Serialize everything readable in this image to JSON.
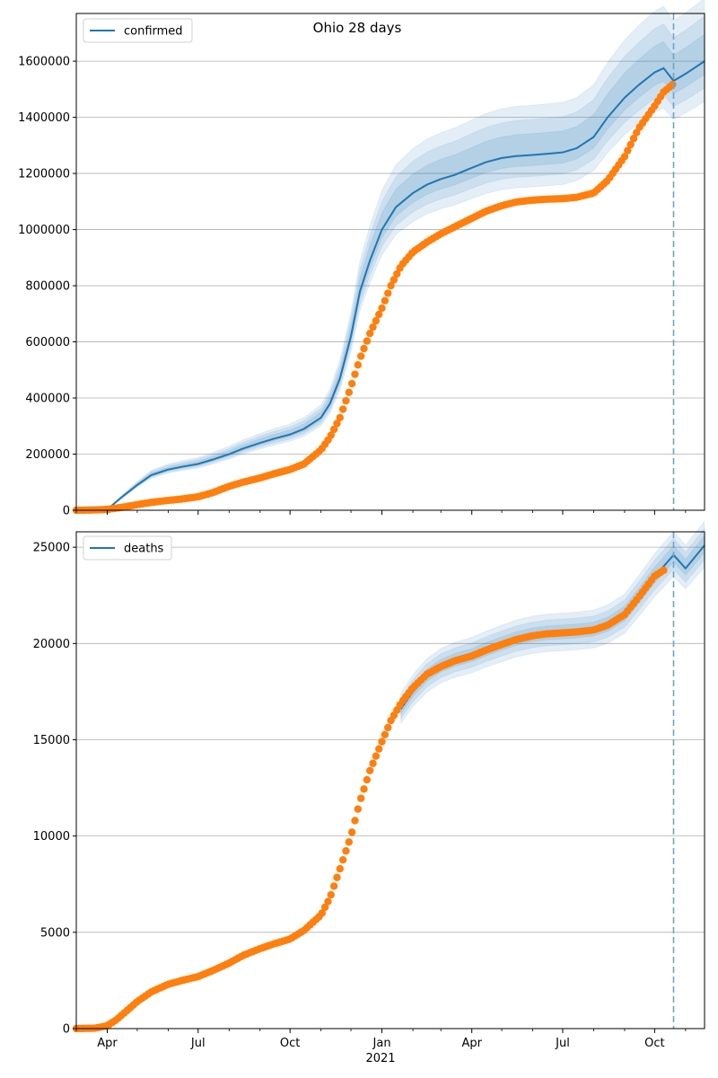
{
  "figure": {
    "title": "Ohio 28 days",
    "year_label": "2021"
  },
  "chart_data": [
    {
      "type": "line",
      "panel": "top",
      "legend": {
        "label": "confirmed",
        "placement": "top-left"
      },
      "x_range": [
        "2020-03-01",
        "2021-11-20"
      ],
      "ylim": [
        0,
        1770000
      ],
      "yticks": [
        0,
        200000,
        400000,
        600000,
        800000,
        1000000,
        1200000,
        1400000,
        1600000
      ],
      "ytick_labels": [
        "0",
        "200000",
        "400000",
        "600000",
        "800000",
        "1000000",
        "1200000",
        "1400000",
        "1600000"
      ],
      "grid": "y",
      "forecast_start": "2021-10-20",
      "series_colors": {
        "model": "#1f77b4",
        "observed": "#ff7f0e"
      },
      "model": {
        "x": [
          "2020-03-10",
          "2020-04-01",
          "2020-04-15",
          "2020-05-01",
          "2020-05-15",
          "2020-06-01",
          "2020-06-15",
          "2020-07-01",
          "2020-07-15",
          "2020-08-01",
          "2020-08-15",
          "2020-09-01",
          "2020-09-15",
          "2020-10-01",
          "2020-10-15",
          "2020-11-01",
          "2020-11-10",
          "2020-11-20",
          "2020-12-01",
          "2020-12-10",
          "2020-12-20",
          "2021-01-01",
          "2021-01-15",
          "2021-02-01",
          "2021-02-15",
          "2021-03-01",
          "2021-03-15",
          "2021-04-01",
          "2021-04-15",
          "2021-05-01",
          "2021-05-15",
          "2021-06-01",
          "2021-06-15",
          "2021-07-01",
          "2021-07-15",
          "2021-08-01",
          "2021-08-15",
          "2021-09-01",
          "2021-09-15",
          "2021-10-01",
          "2021-10-10",
          "2021-10-20",
          "2021-11-01",
          "2021-11-20"
        ],
        "y": [
          2000,
          3000,
          45000,
          90000,
          125000,
          145000,
          155000,
          165000,
          180000,
          200000,
          220000,
          240000,
          255000,
          270000,
          290000,
          330000,
          380000,
          470000,
          620000,
          780000,
          890000,
          1000000,
          1080000,
          1130000,
          1160000,
          1180000,
          1195000,
          1220000,
          1240000,
          1255000,
          1262000,
          1266000,
          1270000,
          1275000,
          1290000,
          1330000,
          1400000,
          1470000,
          1515000,
          1560000,
          1575000,
          1530000,
          1555000,
          1600000
        ],
        "band_inner": [
          0.03,
          0.06
        ],
        "band_mid": [
          0.06,
          0.1
        ],
        "band_outer": [
          0.09,
          0.14
        ]
      },
      "observed": {
        "x": [
          "2020-03-01",
          "2020-03-20",
          "2020-04-01",
          "2020-04-15",
          "2020-05-01",
          "2020-05-15",
          "2020-06-01",
          "2020-06-15",
          "2020-07-01",
          "2020-07-15",
          "2020-08-01",
          "2020-08-15",
          "2020-09-01",
          "2020-09-15",
          "2020-10-01",
          "2020-10-15",
          "2020-11-01",
          "2020-11-10",
          "2020-11-20",
          "2020-12-01",
          "2020-12-10",
          "2020-12-20",
          "2021-01-01",
          "2021-01-10",
          "2021-01-20",
          "2021-02-01",
          "2021-02-15",
          "2021-03-01",
          "2021-03-15",
          "2021-04-01",
          "2021-04-15",
          "2021-05-01",
          "2021-05-15",
          "2021-06-01",
          "2021-06-15",
          "2021-07-01",
          "2021-07-15",
          "2021-08-01",
          "2021-08-15",
          "2021-09-01",
          "2021-09-15",
          "2021-10-01",
          "2021-10-10",
          "2021-10-20"
        ],
        "y": [
          0,
          1000,
          3000,
          10000,
          20000,
          28000,
          35000,
          40000,
          48000,
          62000,
          85000,
          100000,
          115000,
          130000,
          145000,
          165000,
          215000,
          260000,
          330000,
          440000,
          540000,
          630000,
          720000,
          800000,
          870000,
          920000,
          955000,
          985000,
          1010000,
          1040000,
          1065000,
          1085000,
          1098000,
          1105000,
          1108000,
          1110000,
          1115000,
          1130000,
          1175000,
          1260000,
          1360000,
          1440000,
          1490000,
          1520000
        ]
      }
    },
    {
      "type": "line",
      "panel": "bottom",
      "legend": {
        "label": "deaths",
        "placement": "top-left"
      },
      "x_range": [
        "2020-03-01",
        "2021-11-20"
      ],
      "ylim": [
        0,
        25800
      ],
      "yticks": [
        0,
        5000,
        10000,
        15000,
        20000,
        25000
      ],
      "ytick_labels": [
        "0",
        "5000",
        "10000",
        "15000",
        "20000",
        "25000"
      ],
      "xticks": [
        "2020-04-01",
        "2020-07-01",
        "2020-10-01",
        "2021-01-01",
        "2021-04-01",
        "2021-07-01",
        "2021-10-01"
      ],
      "xtick_labels": [
        "Apr",
        "Jul",
        "Oct",
        "Jan",
        "Apr",
        "Jul",
        "Oct"
      ],
      "x_minor_ticks": [
        "2020-03-01",
        "2020-05-01",
        "2020-06-01",
        "2020-08-01",
        "2020-09-01",
        "2020-11-01",
        "2020-12-01",
        "2021-02-01",
        "2021-03-01",
        "2021-05-01",
        "2021-06-01",
        "2021-08-01",
        "2021-09-01",
        "2021-11-01"
      ],
      "grid": "y",
      "forecast_start": "2021-10-20",
      "series_colors": {
        "model": "#1f77b4",
        "observed": "#ff7f0e"
      },
      "model": {
        "x": [
          "2021-01-20",
          "2021-02-01",
          "2021-02-15",
          "2021-03-01",
          "2021-03-15",
          "2021-04-01",
          "2021-04-15",
          "2021-05-01",
          "2021-05-15",
          "2021-06-01",
          "2021-06-15",
          "2021-07-01",
          "2021-07-15",
          "2021-08-01",
          "2021-08-15",
          "2021-09-01",
          "2021-09-15",
          "2021-10-01",
          "2021-10-10",
          "2021-10-20",
          "2021-11-01",
          "2021-11-20"
        ],
        "y": [
          16600,
          17500,
          18300,
          18800,
          19100,
          19350,
          19650,
          19950,
          20200,
          20400,
          20500,
          20550,
          20600,
          20700,
          20950,
          21500,
          22400,
          23500,
          24000,
          24600,
          23900,
          25100
        ],
        "band_inner": [
          0.015,
          0.02
        ],
        "band_mid": [
          0.03,
          0.035
        ],
        "band_outer": [
          0.045,
          0.05
        ]
      },
      "observed": {
        "x": [
          "2020-03-01",
          "2020-03-20",
          "2020-04-01",
          "2020-04-10",
          "2020-04-20",
          "2020-05-01",
          "2020-05-15",
          "2020-06-01",
          "2020-06-15",
          "2020-07-01",
          "2020-07-15",
          "2020-08-01",
          "2020-08-15",
          "2020-09-01",
          "2020-09-15",
          "2020-10-01",
          "2020-10-15",
          "2020-11-01",
          "2020-11-10",
          "2020-11-20",
          "2020-12-01",
          "2020-12-10",
          "2020-12-20",
          "2021-01-01",
          "2021-01-10",
          "2021-01-20",
          "2021-02-01",
          "2021-02-15",
          "2021-03-01",
          "2021-03-15",
          "2021-04-01",
          "2021-04-15",
          "2021-05-01",
          "2021-05-15",
          "2021-06-01",
          "2021-06-15",
          "2021-07-01",
          "2021-07-15",
          "2021-08-01",
          "2021-08-15",
          "2021-09-01",
          "2021-09-15",
          "2021-10-01",
          "2021-10-10"
        ],
        "y": [
          0,
          20,
          150,
          450,
          900,
          1400,
          1900,
          2300,
          2500,
          2700,
          3000,
          3400,
          3800,
          4150,
          4400,
          4650,
          5100,
          5900,
          6800,
          8300,
          10000,
          11800,
          13400,
          14900,
          16000,
          16900,
          17700,
          18400,
          18800,
          19100,
          19350,
          19650,
          19950,
          20200,
          20400,
          20500,
          20550,
          20600,
          20700,
          20950,
          21500,
          22400,
          23500,
          23800
        ]
      }
    }
  ]
}
